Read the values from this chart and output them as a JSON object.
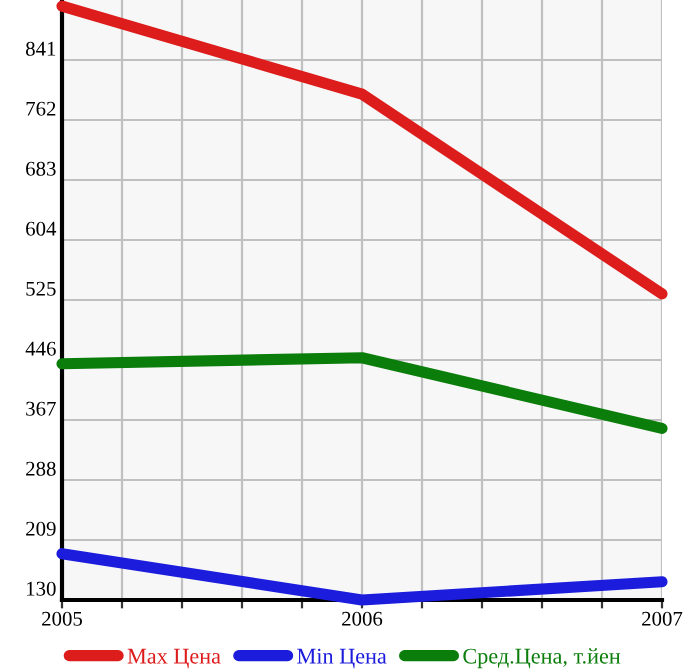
{
  "chart_data": {
    "type": "line",
    "x": [
      2005,
      2006,
      2007
    ],
    "series": [
      {
        "name": "Max Цена",
        "color": "#dd1c1c",
        "values": [
          912,
          796,
          533
        ]
      },
      {
        "name": "Min Цена",
        "color": "#1c1cdd",
        "values": [
          191,
          130,
          154
        ]
      },
      {
        "name": "Сред.Цена, т.йен",
        "color": "#0a7d0a",
        "values": [
          441,
          449,
          356
        ]
      }
    ],
    "xlim": [
      2005,
      2007
    ],
    "xticks": [
      2005,
      {
        "value": 2005.2,
        "label": null
      },
      {
        "value": 2005.4,
        "label": null
      },
      {
        "value": 2005.6,
        "label": null
      },
      {
        "value": 2005.8,
        "label": null
      },
      2006,
      {
        "value": 2006.2,
        "label": null
      },
      {
        "value": 2006.4,
        "label": null
      },
      {
        "value": 2006.6,
        "label": null
      },
      {
        "value": 2006.8,
        "label": null
      },
      2007
    ],
    "ylim": [
      130,
      920
    ],
    "yticks": [
      130,
      209,
      288,
      367,
      446,
      525,
      604,
      683,
      762,
      841
    ],
    "grid": true,
    "legend": "bottom",
    "marker": "none",
    "line_style": "solid"
  }
}
